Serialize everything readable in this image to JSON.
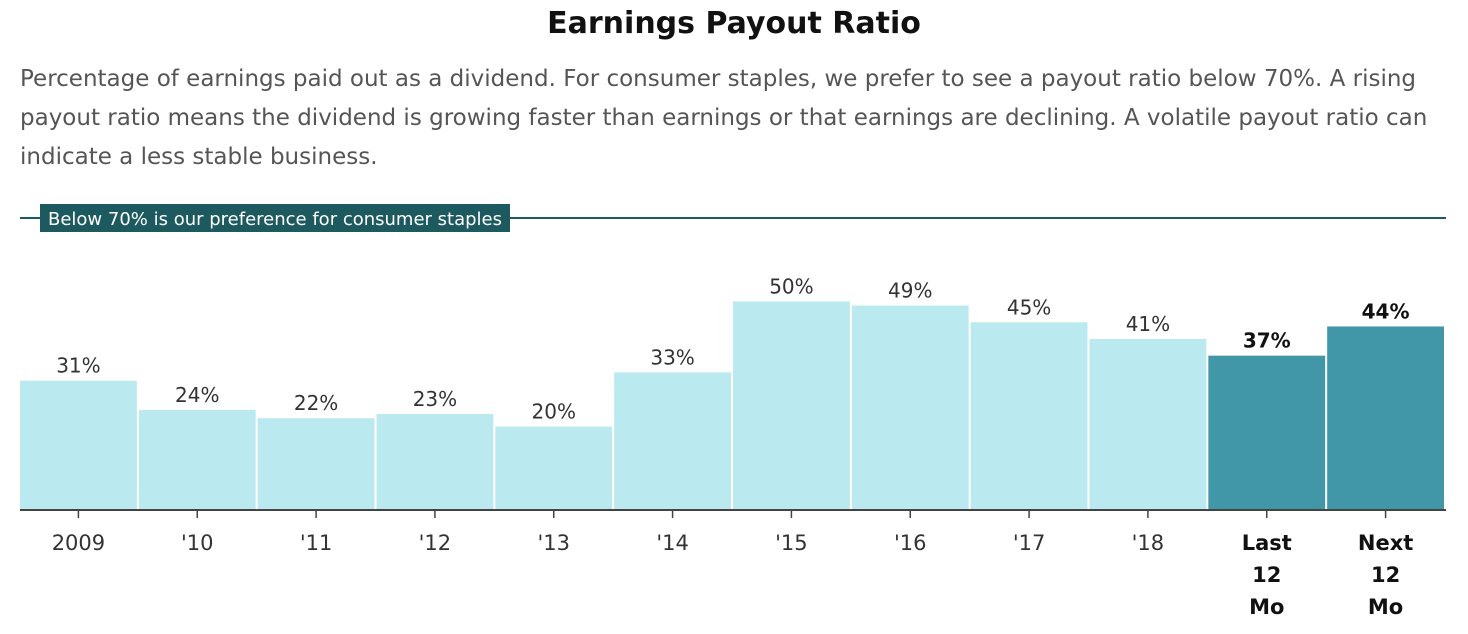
{
  "chart_data": {
    "type": "bar",
    "title": "Earnings Payout Ratio",
    "subtitle": "Percentage of earnings paid out as a dividend. For consumer staples, we prefer to see a payout ratio below 70%. A rising payout ratio means the dividend is growing faster than earnings or that earnings are declining. A volatile payout ratio can indicate a less stable business.",
    "categories": [
      "2009",
      "'10",
      "'11",
      "'12",
      "'13",
      "'14",
      "'15",
      "'16",
      "'17",
      "'18",
      "Last 12 Mo",
      "Next 12 Mo"
    ],
    "values": [
      31,
      24,
      22,
      23,
      20,
      33,
      50,
      49,
      45,
      41,
      37,
      44
    ],
    "data_labels": [
      "31%",
      "24%",
      "22%",
      "23%",
      "20%",
      "33%",
      "50%",
      "49%",
      "45%",
      "41%",
      "37%",
      "44%"
    ],
    "highlighted": [
      false,
      false,
      false,
      false,
      false,
      false,
      false,
      false,
      false,
      false,
      true,
      true
    ],
    "colors": {
      "historical": "#bbe9f0",
      "highlighted": "#4197a8",
      "reference_line": "#1d5a60",
      "axis": "#444444"
    },
    "ylim": [
      0,
      70
    ],
    "reference_line": {
      "value": 70,
      "label": "Below 70% is our preference for consumer staples"
    },
    "xlabel": "",
    "ylabel": "",
    "grid": false,
    "legend": "none"
  }
}
